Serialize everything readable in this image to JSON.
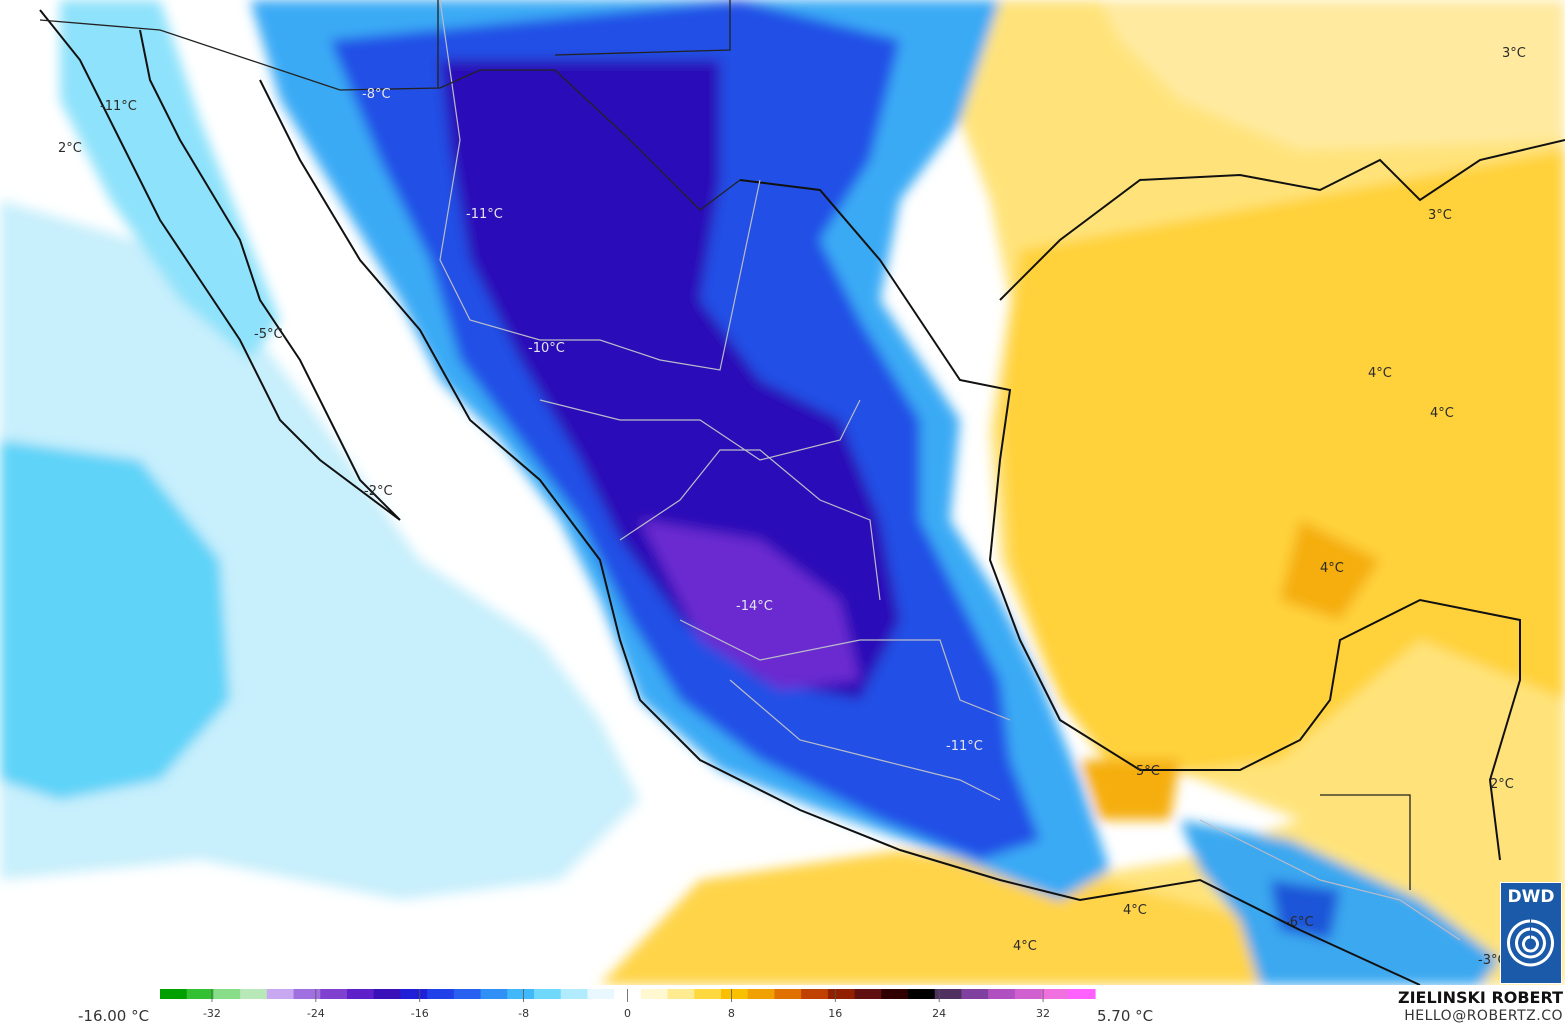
{
  "legend": {
    "min_label": "-16.00 °C",
    "max_label": "5.70 °C",
    "ticks": [
      "-32",
      "-24",
      "-16",
      "-8",
      "0",
      "8",
      "16",
      "24",
      "32"
    ],
    "tick_values": [
      -32,
      -24,
      -16,
      -8,
      0,
      8,
      16,
      24,
      32
    ],
    "range": [
      -36,
      36
    ],
    "colors": [
      "#00a000",
      "#33c033",
      "#88dd88",
      "#b8e8b8",
      "#c8a8f0",
      "#a070e0",
      "#8040d0",
      "#5e20c8",
      "#3a10b8",
      "#2020d8",
      "#2040e8",
      "#2860f0",
      "#3090f5",
      "#40b8fa",
      "#70d8fb",
      "#b0ecfd",
      "#e8f8fe",
      "#ffffff",
      "#fff8d0",
      "#ffec90",
      "#ffd840",
      "#f8c000",
      "#f0a000",
      "#e07000",
      "#c04000",
      "#902000",
      "#601010",
      "#300000",
      "#000000",
      "#503060",
      "#8040a0",
      "#b050c0",
      "#d060d0",
      "#f070e0",
      "#ff60ff"
    ]
  },
  "brand": {
    "name": "ZIELINSKI ROBERT",
    "email": "HELLO@ROBERTZ.CO",
    "logo_text": "DWD"
  },
  "map_labels": [
    {
      "text": "-11°C",
      "dark": false
    },
    {
      "text": "2°C",
      "dark": false
    },
    {
      "text": "-8°C",
      "dark": true
    },
    {
      "text": "-11°C",
      "dark": true
    },
    {
      "text": "-5°C",
      "dark": false
    },
    {
      "text": "-10°C",
      "dark": true
    },
    {
      "text": "-2°C",
      "dark": false
    },
    {
      "text": "-14°C",
      "dark": true
    },
    {
      "text": "-11°C",
      "dark": true
    },
    {
      "text": "5°C",
      "dark": false
    },
    {
      "text": "4°C",
      "dark": false
    },
    {
      "text": "4°C",
      "dark": false
    },
    {
      "text": "4°C",
      "dark": false
    },
    {
      "text": "4°C",
      "dark": false
    },
    {
      "text": "4°C",
      "dark": false
    },
    {
      "text": "3°C",
      "dark": false
    },
    {
      "text": "3°C",
      "dark": false
    },
    {
      "text": "2°C",
      "dark": false
    },
    {
      "text": "-6°C",
      "dark": false
    },
    {
      "text": "-3°C",
      "dark": false
    }
  ]
}
